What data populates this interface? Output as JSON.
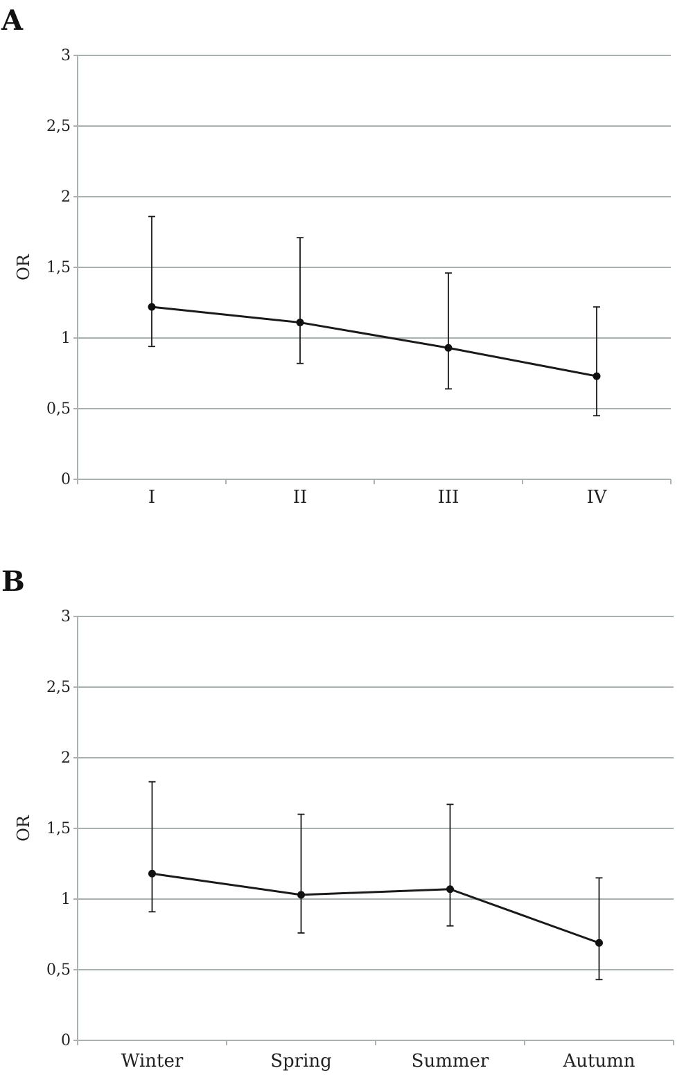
{
  "chart_data": [
    {
      "panel_label": "A",
      "type": "line",
      "ylabel": "OR",
      "xlabel": "",
      "ylim": [
        0,
        3
      ],
      "yticks": [
        "0",
        "0,5",
        "1",
        "1,5",
        "2",
        "2,5",
        "3"
      ],
      "grid": true,
      "categories": [
        "I",
        "II",
        "III",
        "IV"
      ],
      "series": [
        {
          "values": [
            1.22,
            1.11,
            0.93,
            0.73
          ],
          "lower": [
            0.94,
            0.82,
            0.64,
            0.45
          ],
          "upper": [
            1.86,
            1.71,
            1.46,
            1.22
          ]
        }
      ],
      "colors": {
        "line": "#1a1a1a",
        "grid": "#a9b1b1"
      }
    },
    {
      "panel_label": "B",
      "type": "line",
      "ylabel": "OR",
      "xlabel": "",
      "ylim": [
        0,
        3
      ],
      "yticks": [
        "0",
        "0,5",
        "1",
        "1,5",
        "2",
        "2,5",
        "3"
      ],
      "grid": true,
      "categories": [
        "Winter",
        "Spring",
        "Summer",
        "Autumn"
      ],
      "series": [
        {
          "values": [
            1.18,
            1.03,
            1.07,
            0.69
          ],
          "lower": [
            0.91,
            0.76,
            0.81,
            0.43
          ],
          "upper": [
            1.83,
            1.6,
            1.67,
            1.15
          ]
        }
      ],
      "colors": {
        "line": "#1a1a1a",
        "grid": "#a9b1b1"
      }
    }
  ]
}
